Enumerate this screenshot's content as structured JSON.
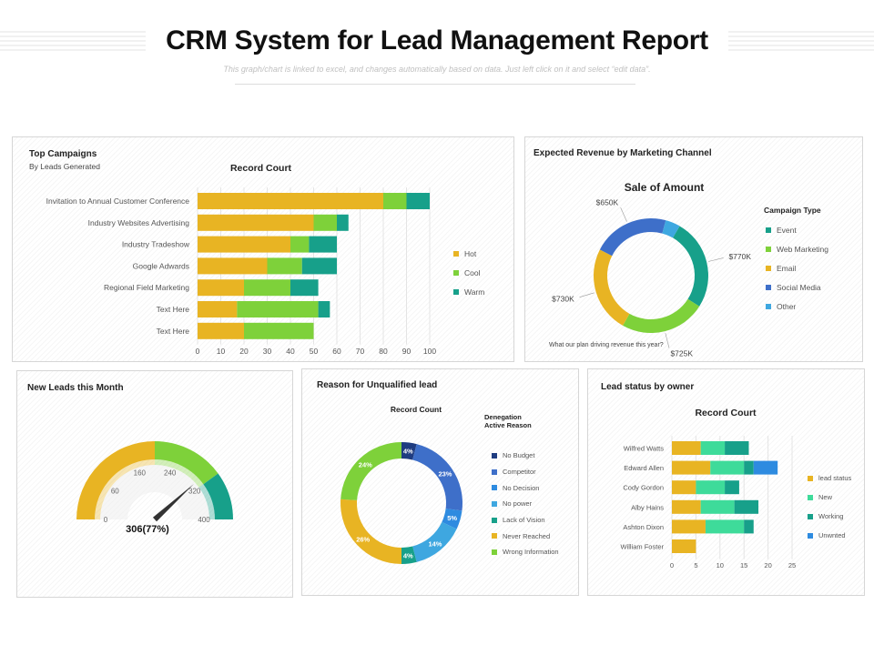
{
  "page": {
    "title": "CRM System for Lead Management Report",
    "subtitle": "This graph/chart is linked to excel, and changes automatically based on data. Just left click on it and select “edit data”."
  },
  "colors": {
    "gold": "#E8B423",
    "green": "#7ED13A",
    "teal": "#17A08A",
    "blue": "#3E6FC9",
    "sky": "#3EA7E0",
    "navy": "#1F3C80",
    "gauge_track": "#eeeeee",
    "needle": "#333333"
  },
  "panels": {
    "campaigns": {
      "title": "Top Campaigns",
      "subtitle": "By Leads Generated"
    },
    "revenue": {
      "title": "Expected Revenue by Marketing  Channel",
      "legend_title": "Campaign Type",
      "note": "What our plan driving revenue this year?"
    },
    "new_leads": {
      "title": "New Leads this Month"
    },
    "unqualified": {
      "title": "Reason for Unqualified lead",
      "legend_title_1": "Denegation",
      "legend_title_2": "Active Reason"
    },
    "lead_status": {
      "title": "Lead status by owner"
    }
  },
  "chart_data": [
    {
      "id": "top-campaigns",
      "type": "bar",
      "orientation": "horizontal",
      "stacked": true,
      "title": "Record Court",
      "categories": [
        "Invitation to Annual Customer Conference",
        "Industry Websites Advertising",
        "Industry Tradeshow",
        "Google Adwards",
        "Regional Field Marketing",
        "Text Here",
        "Text Here"
      ],
      "series": [
        {
          "name": "Hot",
          "color": "#E8B423",
          "values": [
            80,
            50,
            40,
            30,
            20,
            17,
            20
          ]
        },
        {
          "name": "Cool",
          "color": "#7ED13A",
          "values": [
            10,
            10,
            8,
            15,
            20,
            35,
            30
          ]
        },
        {
          "name": "Warm",
          "color": "#17A08A",
          "values": [
            10,
            5,
            12,
            15,
            12,
            5,
            0
          ]
        }
      ],
      "xlim": [
        0,
        100
      ],
      "xticks": [
        "0",
        "10",
        "20",
        "30",
        "40",
        "50",
        "60",
        "70",
        "80",
        "90",
        "100"
      ],
      "legend": "right"
    },
    {
      "id": "sale-of-amount",
      "type": "pie",
      "donut": true,
      "title": "Sale of Amount",
      "slices": [
        {
          "name": "Event",
          "value": 770,
          "label": "$770K",
          "color": "#17A08A"
        },
        {
          "name": "Web Marketing",
          "value": 725,
          "label": "$725K",
          "color": "#7ED13A"
        },
        {
          "name": "Email",
          "value": 730,
          "label": "$730K",
          "color": "#E8B423"
        },
        {
          "name": "Social Media",
          "value": 650,
          "label": "$650K",
          "color": "#3E6FC9"
        },
        {
          "name": "Other",
          "value": 125,
          "label": "",
          "color": "#3EA7E0"
        }
      ],
      "legend": "right"
    },
    {
      "id": "new-leads-gauge",
      "type": "gauge",
      "value_label": "306(77%)",
      "value": 306,
      "percent": 77,
      "max": 400,
      "ticks": [
        "0",
        "60",
        "160",
        "240",
        "320",
        "400"
      ],
      "bands": [
        {
          "to": 0.5,
          "color": "#E8B423"
        },
        {
          "to": 0.8,
          "color": "#7ED13A"
        },
        {
          "to": 1.0,
          "color": "#17A08A"
        }
      ]
    },
    {
      "id": "unqualified-reasons",
      "type": "pie",
      "donut": true,
      "title": "Record Count",
      "slices": [
        {
          "name": "No Budget",
          "value": 4,
          "label": "4%",
          "color": "#1F3C80"
        },
        {
          "name": "Competitor",
          "value": 23,
          "label": "23%",
          "color": "#3E6FC9"
        },
        {
          "name": "No Decision",
          "value": 5,
          "label": "5%",
          "color": "#2E8BE0"
        },
        {
          "name": "No power",
          "value": 14,
          "label": "14%",
          "color": "#3EA7E0"
        },
        {
          "name": "Lack of Vision",
          "value": 4,
          "label": "4%",
          "color": "#17A08A"
        },
        {
          "name": "Never Reached",
          "value": 26,
          "label": "26%",
          "color": "#E8B423"
        },
        {
          "name": "Wrong Information",
          "value": 24,
          "label": "24%",
          "color": "#7ED13A"
        }
      ],
      "legend": "right"
    },
    {
      "id": "lead-status-by-owner",
      "type": "bar",
      "orientation": "horizontal",
      "stacked": true,
      "title": "Record Court",
      "categories": [
        "Wilfred Watts",
        "Edward Allen",
        "Cody Gordon",
        "Alby Hains",
        "Ashton Dixon",
        "William Foster"
      ],
      "series": [
        {
          "name": "lead status",
          "color": "#E8B423",
          "values": [
            6,
            8,
            5,
            6,
            7,
            5
          ]
        },
        {
          "name": "New",
          "color": "#3EDB9A",
          "values": [
            5,
            7,
            6,
            7,
            8,
            0
          ]
        },
        {
          "name": "Working",
          "color": "#17A08A",
          "values": [
            5,
            2,
            3,
            5,
            2,
            0
          ]
        },
        {
          "name": "Unwnted",
          "color": "#2E8BE0",
          "values": [
            0,
            5,
            0,
            0,
            0,
            0
          ]
        }
      ],
      "xlim": [
        0,
        25
      ],
      "xticks": [
        "0",
        "5",
        "10",
        "15",
        "20",
        "25"
      ],
      "legend": "right"
    }
  ]
}
